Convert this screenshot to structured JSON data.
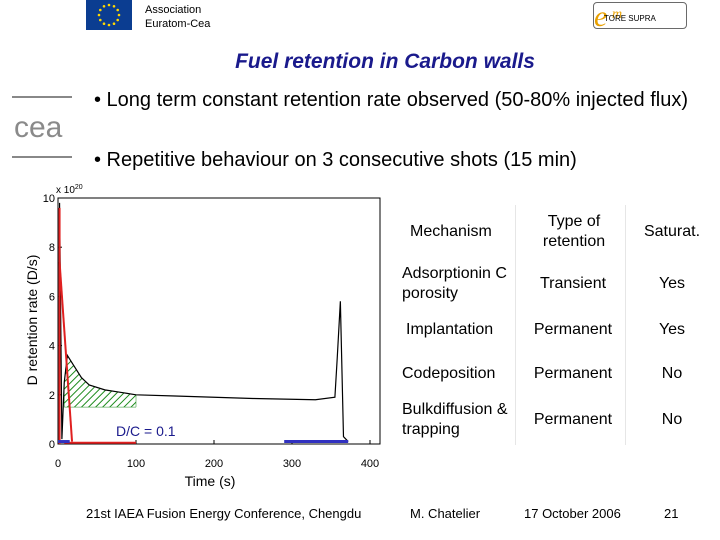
{
  "header": {
    "assoc_line1": "Association",
    "assoc_line2": "Euratom-Cea",
    "tore_label": "TORE SUPRA"
  },
  "title": "Fuel retention in Carbon walls",
  "bullets": [
    "• Long term constant retention rate observed (50-80% injected flux)",
    "• Repetitive behaviour on 3 consecutive shots (15 min)"
  ],
  "chart_data": {
    "type": "line",
    "ylabel": "D retention rate (D/s)",
    "xlabel": "Time (s)",
    "multiplier": "x 10^20",
    "xlim": [
      0,
      400
    ],
    "ylim": [
      0,
      10
    ],
    "xticks": [
      "0",
      "100",
      "200",
      "300",
      "400"
    ],
    "yticks": [
      "0",
      "2",
      "4",
      "6",
      "8",
      "10"
    ],
    "annotation": "D/C = 0.1",
    "series": [
      {
        "values": [
          {
            "x": 2,
            "y": 9.8
          },
          {
            "x": 5,
            "y": 0.2
          },
          {
            "x": 8,
            "y": 2.5
          },
          {
            "x": 12,
            "y": 3.6
          },
          {
            "x": 20,
            "y": 3.2
          },
          {
            "x": 30,
            "y": 2.7
          },
          {
            "x": 40,
            "y": 2.4
          },
          {
            "x": 60,
            "y": 2.2
          },
          {
            "x": 80,
            "y": 2.1
          },
          {
            "x": 100,
            "y": 2.0
          },
          {
            "x": 150,
            "y": 1.95
          },
          {
            "x": 200,
            "y": 1.9
          },
          {
            "x": 250,
            "y": 1.85
          },
          {
            "x": 330,
            "y": 1.8
          },
          {
            "x": 355,
            "y": 1.9
          },
          {
            "x": 358,
            "y": 3.5
          },
          {
            "x": 362,
            "y": 5.8
          },
          {
            "x": 366,
            "y": 0.3
          },
          {
            "x": 372,
            "y": 0.1
          }
        ]
      }
    ]
  },
  "table": {
    "headers": [
      "Mechanism",
      "Type of retention",
      "Saturat."
    ],
    "rows": [
      [
        "Adsorptionin C porosity",
        "Transient",
        "Yes"
      ],
      [
        "Implantation",
        "Permanent",
        "Yes"
      ],
      [
        "Codeposition",
        "Permanent",
        "No"
      ],
      [
        "Bulkdiffusion & trapping",
        "Permanent",
        "No"
      ]
    ]
  },
  "footer": {
    "conference": "21st IAEA Fusion Energy Conference, Chengdu",
    "author": "M. Chatelier",
    "date": "17 October 2006",
    "page": "21"
  },
  "colors": {
    "title": "#1a1a8c",
    "eu_blue": "#0b3d91",
    "eu_star": "#ffd700",
    "hatch": "#1e8c1e",
    "red_line": "#e02020",
    "blue_line": "#3030c0"
  }
}
